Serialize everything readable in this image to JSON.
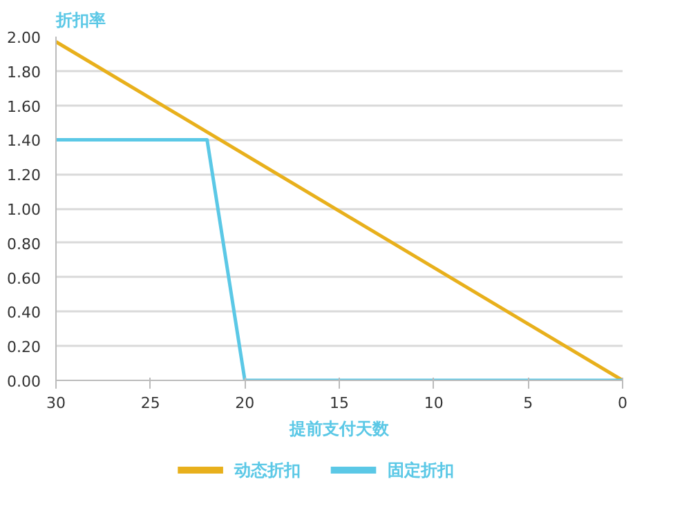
{
  "chart_data": {
    "type": "line",
    "xlabel": "提前支付天数",
    "ylabel": "折扣率",
    "xlim": [
      30,
      0
    ],
    "xticks": [
      30,
      25,
      20,
      15,
      10,
      5,
      0
    ],
    "ylim": [
      0,
      2.0
    ],
    "yticks": [
      {
        "value": 0,
        "label": "0.00"
      },
      {
        "value": 0.2,
        "label": "0.20"
      },
      {
        "value": 0.4,
        "label": "0.40"
      },
      {
        "value": 0.6,
        "label": "0.60"
      },
      {
        "value": 0.8,
        "label": "0.80"
      },
      {
        "value": 1.0,
        "label": "1.00"
      },
      {
        "value": 1.2,
        "label": "1.20"
      },
      {
        "value": 1.4,
        "label": "1.40"
      },
      {
        "value": 1.6,
        "label": "1.60"
      },
      {
        "value": 1.8,
        "label": "1.80"
      },
      {
        "value": 2.0,
        "label": "2.00"
      }
    ],
    "series": [
      {
        "name": "动态折扣",
        "color": "#e8b01c",
        "x": [
          30,
          0
        ],
        "values": [
          1.97,
          0
        ]
      },
      {
        "name": "固定折扣",
        "color": "#5bc8e6",
        "x": [
          30,
          22,
          20,
          0
        ],
        "values": [
          1.4,
          1.4,
          0,
          0
        ]
      }
    ],
    "grid": "y",
    "legend": "bottom",
    "marker": "none",
    "line_style": "solid"
  }
}
